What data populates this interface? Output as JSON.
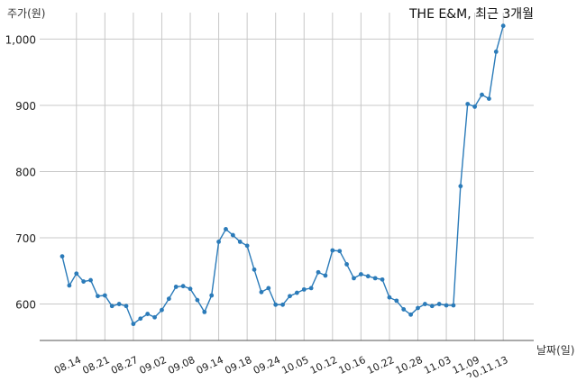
{
  "chart_data": {
    "type": "line",
    "title": "THE E&M, 최근 3개월",
    "ylabel": "주가(원)",
    "xlabel": "날짜(일)",
    "ylim": [
      545,
      1040
    ],
    "yticks": [
      600,
      700,
      800,
      900,
      1000
    ],
    "ytick_labels": [
      "600",
      "700",
      "800",
      "900",
      "1,000"
    ],
    "xticks": [
      {
        "index": 2,
        "label": "08.14"
      },
      {
        "index": 6,
        "label": "08.21"
      },
      {
        "index": 10,
        "label": "08.27"
      },
      {
        "index": 14,
        "label": "09.02"
      },
      {
        "index": 18,
        "label": "09.08"
      },
      {
        "index": 22,
        "label": "09.14"
      },
      {
        "index": 26,
        "label": "09.18"
      },
      {
        "index": 30,
        "label": "09.24"
      },
      {
        "index": 34,
        "label": "10.05"
      },
      {
        "index": 38,
        "label": "10.12"
      },
      {
        "index": 42,
        "label": "10.16"
      },
      {
        "index": 46,
        "label": "10.22"
      },
      {
        "index": 50,
        "label": "10.28"
      },
      {
        "index": 54,
        "label": "11.03"
      },
      {
        "index": 58,
        "label": "11.09"
      },
      {
        "index": 62,
        "label": "20.11.13"
      }
    ],
    "grid": true,
    "series": [
      {
        "color": "#2b7bb9",
        "values": [
          672,
          628,
          646,
          634,
          636,
          612,
          613,
          597,
          600,
          597,
          570,
          578,
          585,
          580,
          591,
          608,
          626,
          627,
          623,
          606,
          588,
          613,
          694,
          713,
          704,
          694,
          688,
          652,
          618,
          624,
          599,
          599,
          612,
          617,
          622,
          624,
          648,
          643,
          681,
          680,
          660,
          639,
          645,
          642,
          639,
          637,
          610,
          605,
          592,
          584,
          594,
          600,
          597,
          600,
          598,
          598,
          778,
          902,
          898,
          916,
          910,
          981,
          1020
        ]
      }
    ]
  }
}
